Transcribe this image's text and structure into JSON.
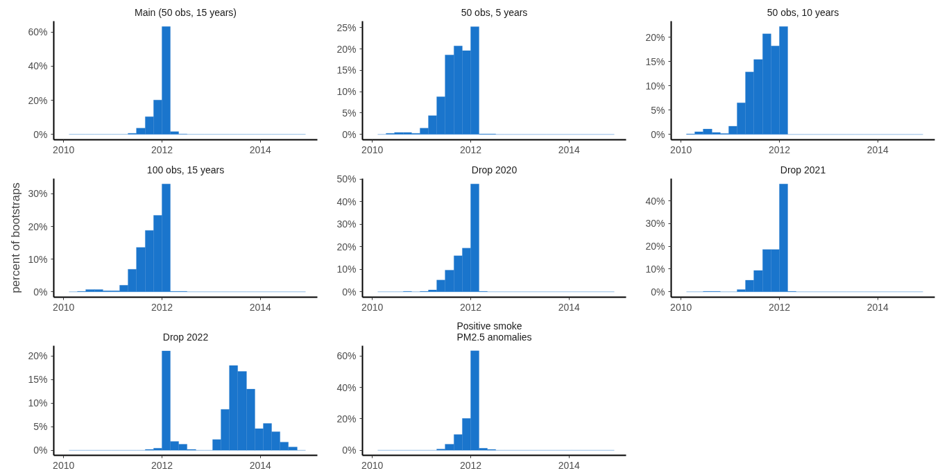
{
  "chart_data": [
    {
      "type": "histogram",
      "title": "Main (50 obs, 15 years)",
      "color": "#1a75cc",
      "grid": false,
      "xlim": [
        2009.8,
        2015.16
      ],
      "xticks": [
        2010,
        2012,
        2014
      ],
      "ylim": [
        -3.2,
        66.4
      ],
      "yticks": [
        {
          "value": 0,
          "label": "0%"
        },
        {
          "value": 20,
          "label": "20%"
        },
        {
          "value": 40,
          "label": "40%"
        },
        {
          "value": 60,
          "label": "60%"
        }
      ],
      "bins": [
        2010.11,
        2010.28,
        2010.45,
        2010.63,
        2010.8,
        2010.97,
        2011.14,
        2011.31,
        2011.48,
        2011.66,
        2011.83,
        2012.0,
        2012.17,
        2012.34,
        2012.51,
        2012.69,
        2012.86,
        2013.03,
        2013.2,
        2013.37,
        2013.54,
        2013.72,
        2013.89,
        2014.06,
        2014.23,
        2014.4,
        2014.57,
        2014.75,
        2014.92
      ],
      "values": [
        0,
        0,
        0,
        0,
        0,
        0,
        0,
        0.6,
        3.6,
        10.3,
        20.1,
        63.2,
        1.6,
        0.2,
        0,
        0,
        0,
        0,
        0,
        0,
        0,
        0,
        0,
        0,
        0,
        0,
        0,
        0
      ]
    },
    {
      "type": "histogram",
      "title": "50 obs, 5 years",
      "color": "#1a75cc",
      "grid": false,
      "xlim": [
        2009.8,
        2015.16
      ],
      "xticks": [
        2010,
        2012,
        2014
      ],
      "ylim": [
        -1.26,
        26.5
      ],
      "yticks": [
        {
          "value": 0,
          "label": "0%"
        },
        {
          "value": 5,
          "label": "5%"
        },
        {
          "value": 10,
          "label": "10%"
        },
        {
          "value": 15,
          "label": "15%"
        },
        {
          "value": 20,
          "label": "20%"
        },
        {
          "value": 25,
          "label": "25%"
        }
      ],
      "bins": [
        2010.11,
        2010.28,
        2010.45,
        2010.63,
        2010.8,
        2010.97,
        2011.14,
        2011.31,
        2011.48,
        2011.66,
        2011.83,
        2012.0,
        2012.17,
        2012.34,
        2012.51,
        2012.69,
        2012.86,
        2013.03,
        2013.2,
        2013.37,
        2013.54,
        2013.72,
        2013.89,
        2014.06,
        2014.23,
        2014.4,
        2014.57,
        2014.75,
        2014.92
      ],
      "values": [
        0,
        0.25,
        0.45,
        0.45,
        0.25,
        1.45,
        4.4,
        8.8,
        18.6,
        20.7,
        19.6,
        25.2,
        0.1,
        0.1,
        0,
        0,
        0,
        0,
        0,
        0,
        0,
        0,
        0,
        0,
        0,
        0,
        0,
        0
      ]
    },
    {
      "type": "histogram",
      "title": "50 obs, 10 years",
      "color": "#1a75cc",
      "grid": false,
      "xlim": [
        2009.8,
        2015.16
      ],
      "xticks": [
        2010,
        2012,
        2014
      ],
      "ylim": [
        -1.1,
        23.3
      ],
      "yticks": [
        {
          "value": 0,
          "label": "0%"
        },
        {
          "value": 5,
          "label": "5%"
        },
        {
          "value": 10,
          "label": "10%"
        },
        {
          "value": 15,
          "label": "15%"
        },
        {
          "value": 20,
          "label": "20%"
        }
      ],
      "bins": [
        2010.11,
        2010.28,
        2010.45,
        2010.63,
        2010.8,
        2010.97,
        2011.14,
        2011.31,
        2011.48,
        2011.66,
        2011.83,
        2012.0,
        2012.17,
        2012.34,
        2012.51,
        2012.69,
        2012.86,
        2013.03,
        2013.2,
        2013.37,
        2013.54,
        2013.72,
        2013.89,
        2014.06,
        2014.23,
        2014.4,
        2014.57,
        2014.75,
        2014.92
      ],
      "values": [
        0.1,
        0.55,
        1.1,
        0.4,
        0.2,
        1.7,
        6.5,
        12.85,
        15.4,
        20.7,
        18.2,
        22.2,
        0,
        0,
        0,
        0,
        0,
        0,
        0,
        0,
        0,
        0,
        0,
        0,
        0,
        0,
        0,
        0
      ]
    },
    {
      "type": "histogram",
      "title": "100 obs, 15 years",
      "ylabel": "percent of bootstraps",
      "color": "#1a75cc",
      "grid": false,
      "xlim": [
        2009.8,
        2015.16
      ],
      "xticks": [
        2010,
        2012,
        2014
      ],
      "ylim": [
        -1.65,
        34.65
      ],
      "yticks": [
        {
          "value": 0,
          "label": "0%"
        },
        {
          "value": 10,
          "label": "10%"
        },
        {
          "value": 20,
          "label": "20%"
        },
        {
          "value": 30,
          "label": "30%"
        }
      ],
      "bins": [
        2010.11,
        2010.28,
        2010.45,
        2010.63,
        2010.8,
        2010.97,
        2011.14,
        2011.31,
        2011.48,
        2011.66,
        2011.83,
        2012.0,
        2012.17,
        2012.34,
        2012.51,
        2012.69,
        2012.86,
        2013.03,
        2013.2,
        2013.37,
        2013.54,
        2013.72,
        2013.89,
        2014.06,
        2014.23,
        2014.4,
        2014.57,
        2014.75,
        2014.92
      ],
      "values": [
        0,
        0.15,
        0.7,
        0.7,
        0.3,
        0.3,
        2.0,
        6.9,
        13.6,
        18.8,
        23.4,
        33.0,
        0.15,
        0.15,
        0,
        0,
        0,
        0,
        0,
        0,
        0,
        0,
        0,
        0,
        0,
        0,
        0,
        0
      ]
    },
    {
      "type": "histogram",
      "title": "Drop 2020",
      "color": "#1a75cc",
      "grid": false,
      "xlim": [
        2009.8,
        2015.16
      ],
      "xticks": [
        2010,
        2012,
        2014
      ],
      "ylim": [
        -2.4,
        50.3
      ],
      "yticks": [
        {
          "value": 0,
          "label": "0%"
        },
        {
          "value": 10,
          "label": "10%"
        },
        {
          "value": 20,
          "label": "20%"
        },
        {
          "value": 30,
          "label": "30%"
        },
        {
          "value": 40,
          "label": "40%"
        },
        {
          "value": 50,
          "label": "50%"
        }
      ],
      "bins": [
        2010.11,
        2010.28,
        2010.45,
        2010.63,
        2010.8,
        2010.97,
        2011.14,
        2011.31,
        2011.48,
        2011.66,
        2011.83,
        2012.0,
        2012.17,
        2012.34,
        2012.51,
        2012.69,
        2012.86,
        2013.03,
        2013.2,
        2013.37,
        2013.54,
        2013.72,
        2013.89,
        2014.06,
        2014.23,
        2014.4,
        2014.57,
        2014.75,
        2014.92
      ],
      "values": [
        0,
        0,
        0,
        0.2,
        0,
        0.2,
        0.8,
        5.2,
        9.6,
        16.0,
        19.4,
        47.9,
        0.2,
        0,
        0,
        0,
        0,
        0,
        0,
        0,
        0,
        0,
        0,
        0,
        0,
        0,
        0,
        0
      ]
    },
    {
      "type": "histogram",
      "title": "Drop 2021",
      "color": "#1a75cc",
      "grid": false,
      "xlim": [
        2009.8,
        2015.16
      ],
      "xticks": [
        2010,
        2012,
        2014
      ],
      "ylim": [
        -2.37,
        49.8
      ],
      "yticks": [
        {
          "value": 0,
          "label": "0%"
        },
        {
          "value": 10,
          "label": "10%"
        },
        {
          "value": 20,
          "label": "20%"
        },
        {
          "value": 30,
          "label": "30%"
        },
        {
          "value": 40,
          "label": "40%"
        }
      ],
      "bins": [
        2010.11,
        2010.28,
        2010.45,
        2010.63,
        2010.8,
        2010.97,
        2011.14,
        2011.31,
        2011.48,
        2011.66,
        2011.83,
        2012.0,
        2012.17,
        2012.34,
        2012.51,
        2012.69,
        2012.86,
        2013.03,
        2013.2,
        2013.37,
        2013.54,
        2013.72,
        2013.89,
        2014.06,
        2014.23,
        2014.4,
        2014.57,
        2014.75,
        2014.92
      ],
      "values": [
        0,
        0,
        0.2,
        0.2,
        0,
        0,
        0.95,
        5.1,
        9.4,
        18.6,
        18.6,
        47.4,
        0.2,
        0,
        0,
        0,
        0,
        0,
        0,
        0,
        0,
        0,
        0,
        0,
        0,
        0,
        0,
        0
      ]
    },
    {
      "type": "histogram",
      "title": "Drop 2022",
      "color": "#1a75cc",
      "grid": false,
      "xlim": [
        2009.8,
        2015.16
      ],
      "xticks": [
        2010,
        2012,
        2014
      ],
      "ylim": [
        -1.06,
        22.2
      ],
      "yticks": [
        {
          "value": 0,
          "label": "0%"
        },
        {
          "value": 5,
          "label": "5%"
        },
        {
          "value": 10,
          "label": "10%"
        },
        {
          "value": 15,
          "label": "15%"
        },
        {
          "value": 20,
          "label": "20%"
        }
      ],
      "bins": [
        2010.11,
        2010.28,
        2010.45,
        2010.63,
        2010.8,
        2010.97,
        2011.14,
        2011.31,
        2011.48,
        2011.66,
        2011.83,
        2012.0,
        2012.17,
        2012.34,
        2012.51,
        2012.69,
        2012.86,
        2013.03,
        2013.2,
        2013.37,
        2013.54,
        2013.72,
        2013.89,
        2014.06,
        2014.23,
        2014.4,
        2014.57,
        2014.75,
        2014.92
      ],
      "values": [
        0,
        0,
        0,
        0,
        0,
        0,
        0,
        0,
        0,
        0.2,
        0.45,
        21.1,
        1.9,
        1.3,
        0.2,
        0,
        0,
        2.3,
        8.7,
        18.0,
        16.75,
        13.0,
        4.6,
        5.7,
        3.95,
        1.75,
        0.7,
        0
      ]
    },
    {
      "type": "histogram",
      "title": "Positive smoke\nPM2.5 anomalies",
      "color": "#1a75cc",
      "grid": false,
      "xlim": [
        2009.8,
        2015.16
      ],
      "xticks": [
        2010,
        2012,
        2014
      ],
      "ylim": [
        -3.2,
        66.6
      ],
      "yticks": [
        {
          "value": 0,
          "label": "0%"
        },
        {
          "value": 20,
          "label": "20%"
        },
        {
          "value": 40,
          "label": "40%"
        },
        {
          "value": 60,
          "label": "60%"
        }
      ],
      "bins": [
        2010.11,
        2010.28,
        2010.45,
        2010.63,
        2010.8,
        2010.97,
        2011.14,
        2011.31,
        2011.48,
        2011.66,
        2011.83,
        2012.0,
        2012.17,
        2012.34,
        2012.51,
        2012.69,
        2012.86,
        2013.03,
        2013.2,
        2013.37,
        2013.54,
        2013.72,
        2013.89,
        2014.06,
        2014.23,
        2014.4,
        2014.57,
        2014.75,
        2014.92
      ],
      "values": [
        0,
        0,
        0,
        0,
        0,
        0,
        0,
        0.8,
        3.9,
        10.0,
        20.3,
        63.4,
        1.3,
        0.5,
        0,
        0,
        0,
        0,
        0,
        0,
        0,
        0,
        0,
        0,
        0,
        0,
        0,
        0
      ]
    }
  ]
}
